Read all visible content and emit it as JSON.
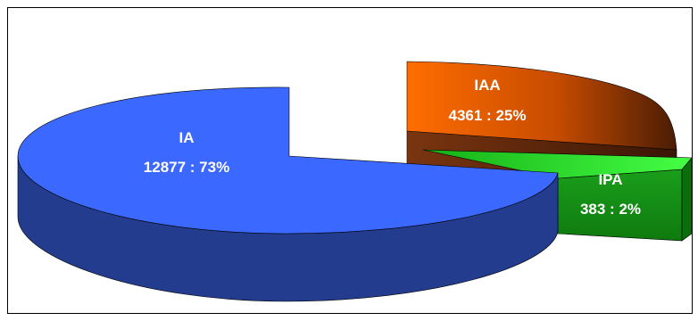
{
  "chart_data": {
    "type": "pie",
    "style": "3d-exploded",
    "title": "",
    "legend": "none",
    "slices": [
      {
        "name": "IA",
        "value": 12877,
        "percent": 73,
        "label": "12877 : 73%",
        "color": "#3a67ff",
        "side_color": "#243c8c"
      },
      {
        "name": "IAA",
        "value": 4361,
        "percent": 25,
        "label": "4361 : 25%",
        "color": "#ff6a00",
        "side_color": "#6b2a08"
      },
      {
        "name": "IPA",
        "value": 383,
        "percent": 2,
        "label": "383 : 2%",
        "color": "#22dd22",
        "side_color": "#118811"
      }
    ]
  }
}
